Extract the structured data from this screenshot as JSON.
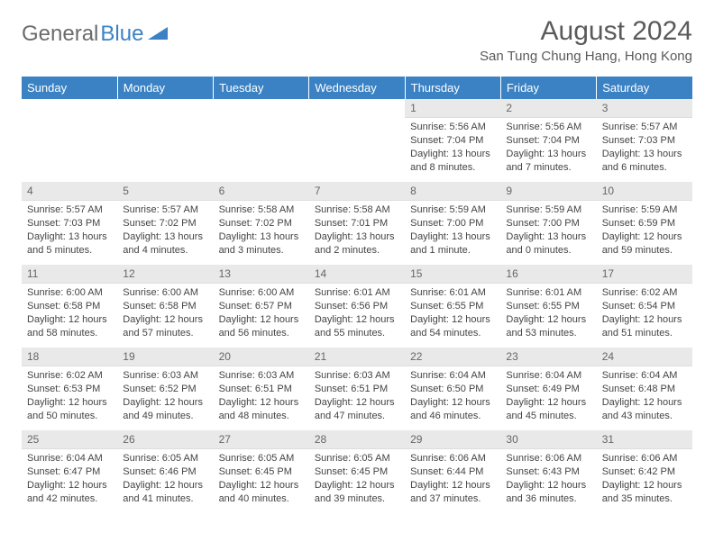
{
  "logo": {
    "text1": "General",
    "text2": "Blue"
  },
  "title": "August 2024",
  "location": "San Tung Chung Hang, Hong Kong",
  "colors": {
    "header_bg": "#3b82c4",
    "header_text": "#ffffff",
    "daynum_bg": "#e9e9e9",
    "body_bg": "#ffffff",
    "text": "#444444",
    "logo_gray": "#6b6b6b",
    "logo_blue": "#3b82c4"
  },
  "weekdays": [
    "Sunday",
    "Monday",
    "Tuesday",
    "Wednesday",
    "Thursday",
    "Friday",
    "Saturday"
  ],
  "weeks": [
    [
      null,
      null,
      null,
      null,
      {
        "n": "1",
        "sr": "5:56 AM",
        "ss": "7:04 PM",
        "dl": "13 hours and 8 minutes."
      },
      {
        "n": "2",
        "sr": "5:56 AM",
        "ss": "7:04 PM",
        "dl": "13 hours and 7 minutes."
      },
      {
        "n": "3",
        "sr": "5:57 AM",
        "ss": "7:03 PM",
        "dl": "13 hours and 6 minutes."
      }
    ],
    [
      {
        "n": "4",
        "sr": "5:57 AM",
        "ss": "7:03 PM",
        "dl": "13 hours and 5 minutes."
      },
      {
        "n": "5",
        "sr": "5:57 AM",
        "ss": "7:02 PM",
        "dl": "13 hours and 4 minutes."
      },
      {
        "n": "6",
        "sr": "5:58 AM",
        "ss": "7:02 PM",
        "dl": "13 hours and 3 minutes."
      },
      {
        "n": "7",
        "sr": "5:58 AM",
        "ss": "7:01 PM",
        "dl": "13 hours and 2 minutes."
      },
      {
        "n": "8",
        "sr": "5:59 AM",
        "ss": "7:00 PM",
        "dl": "13 hours and 1 minute."
      },
      {
        "n": "9",
        "sr": "5:59 AM",
        "ss": "7:00 PM",
        "dl": "13 hours and 0 minutes."
      },
      {
        "n": "10",
        "sr": "5:59 AM",
        "ss": "6:59 PM",
        "dl": "12 hours and 59 minutes."
      }
    ],
    [
      {
        "n": "11",
        "sr": "6:00 AM",
        "ss": "6:58 PM",
        "dl": "12 hours and 58 minutes."
      },
      {
        "n": "12",
        "sr": "6:00 AM",
        "ss": "6:58 PM",
        "dl": "12 hours and 57 minutes."
      },
      {
        "n": "13",
        "sr": "6:00 AM",
        "ss": "6:57 PM",
        "dl": "12 hours and 56 minutes."
      },
      {
        "n": "14",
        "sr": "6:01 AM",
        "ss": "6:56 PM",
        "dl": "12 hours and 55 minutes."
      },
      {
        "n": "15",
        "sr": "6:01 AM",
        "ss": "6:55 PM",
        "dl": "12 hours and 54 minutes."
      },
      {
        "n": "16",
        "sr": "6:01 AM",
        "ss": "6:55 PM",
        "dl": "12 hours and 53 minutes."
      },
      {
        "n": "17",
        "sr": "6:02 AM",
        "ss": "6:54 PM",
        "dl": "12 hours and 51 minutes."
      }
    ],
    [
      {
        "n": "18",
        "sr": "6:02 AM",
        "ss": "6:53 PM",
        "dl": "12 hours and 50 minutes."
      },
      {
        "n": "19",
        "sr": "6:03 AM",
        "ss": "6:52 PM",
        "dl": "12 hours and 49 minutes."
      },
      {
        "n": "20",
        "sr": "6:03 AM",
        "ss": "6:51 PM",
        "dl": "12 hours and 48 minutes."
      },
      {
        "n": "21",
        "sr": "6:03 AM",
        "ss": "6:51 PM",
        "dl": "12 hours and 47 minutes."
      },
      {
        "n": "22",
        "sr": "6:04 AM",
        "ss": "6:50 PM",
        "dl": "12 hours and 46 minutes."
      },
      {
        "n": "23",
        "sr": "6:04 AM",
        "ss": "6:49 PM",
        "dl": "12 hours and 45 minutes."
      },
      {
        "n": "24",
        "sr": "6:04 AM",
        "ss": "6:48 PM",
        "dl": "12 hours and 43 minutes."
      }
    ],
    [
      {
        "n": "25",
        "sr": "6:04 AM",
        "ss": "6:47 PM",
        "dl": "12 hours and 42 minutes."
      },
      {
        "n": "26",
        "sr": "6:05 AM",
        "ss": "6:46 PM",
        "dl": "12 hours and 41 minutes."
      },
      {
        "n": "27",
        "sr": "6:05 AM",
        "ss": "6:45 PM",
        "dl": "12 hours and 40 minutes."
      },
      {
        "n": "28",
        "sr": "6:05 AM",
        "ss": "6:45 PM",
        "dl": "12 hours and 39 minutes."
      },
      {
        "n": "29",
        "sr": "6:06 AM",
        "ss": "6:44 PM",
        "dl": "12 hours and 37 minutes."
      },
      {
        "n": "30",
        "sr": "6:06 AM",
        "ss": "6:43 PM",
        "dl": "12 hours and 36 minutes."
      },
      {
        "n": "31",
        "sr": "6:06 AM",
        "ss": "6:42 PM",
        "dl": "12 hours and 35 minutes."
      }
    ]
  ],
  "labels": {
    "sunrise": "Sunrise: ",
    "sunset": "Sunset: ",
    "daylight": "Daylight: "
  }
}
